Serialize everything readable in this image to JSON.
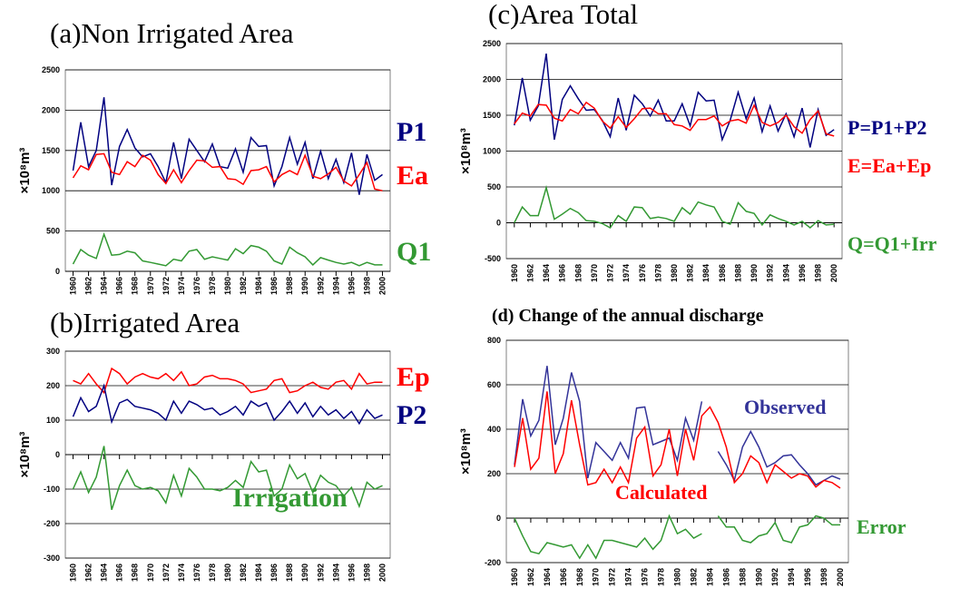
{
  "chart_data": [
    {
      "type": "line",
      "title": "(a)Non Irrigated Area",
      "y_label": "×10⁸m³",
      "x": [
        1960,
        1961,
        1962,
        1963,
        1964,
        1965,
        1966,
        1967,
        1968,
        1969,
        1970,
        1971,
        1972,
        1973,
        1974,
        1975,
        1976,
        1977,
        1978,
        1979,
        1980,
        1981,
        1982,
        1983,
        1984,
        1985,
        1986,
        1987,
        1988,
        1989,
        1990,
        1991,
        1992,
        1993,
        1994,
        1995,
        1996,
        1997,
        1998,
        1999,
        2000
      ],
      "xlim": [
        1959,
        2001
      ],
      "xticks": [
        1960,
        1962,
        1964,
        1966,
        1968,
        1970,
        1972,
        1974,
        1976,
        1978,
        1980,
        1982,
        1984,
        1986,
        1988,
        1990,
        1992,
        1994,
        1996,
        1998,
        2000
      ],
      "ylim": [
        0,
        2500
      ],
      "yticks": [
        0,
        500,
        1000,
        1500,
        2000,
        2500
      ],
      "grid": true,
      "series": [
        {
          "name": "P1",
          "color": "#000080",
          "values": [
            1250,
            1850,
            1300,
            1500,
            2160,
            1070,
            1550,
            1760,
            1530,
            1420,
            1460,
            1300,
            1100,
            1600,
            1150,
            1640,
            1500,
            1360,
            1580,
            1300,
            1280,
            1520,
            1230,
            1660,
            1550,
            1560,
            1060,
            1300,
            1660,
            1330,
            1600,
            1150,
            1490,
            1150,
            1390,
            1100,
            1470,
            950,
            1450,
            1130,
            1200
          ]
        },
        {
          "name": "Ea",
          "color": "#ff0000",
          "values": [
            1160,
            1310,
            1260,
            1450,
            1460,
            1230,
            1200,
            1360,
            1300,
            1440,
            1380,
            1200,
            1090,
            1260,
            1100,
            1250,
            1380,
            1370,
            1290,
            1300,
            1150,
            1140,
            1080,
            1250,
            1260,
            1300,
            1110,
            1200,
            1250,
            1200,
            1440,
            1180,
            1150,
            1210,
            1290,
            1120,
            1060,
            1200,
            1350,
            1020,
            1000
          ]
        },
        {
          "name": "Q1",
          "color": "#339933",
          "values": [
            90,
            270,
            200,
            160,
            460,
            200,
            210,
            250,
            230,
            130,
            110,
            90,
            70,
            150,
            130,
            250,
            270,
            150,
            180,
            160,
            140,
            280,
            220,
            320,
            300,
            250,
            130,
            90,
            300,
            230,
            180,
            80,
            170,
            140,
            110,
            90,
            110,
            70,
            110,
            80,
            80
          ]
        }
      ]
    },
    {
      "type": "line",
      "title": "(b)Irrigated Area",
      "y_label": "×10⁸m³",
      "x": [
        1960,
        1961,
        1962,
        1963,
        1964,
        1965,
        1966,
        1967,
        1968,
        1969,
        1970,
        1971,
        1972,
        1973,
        1974,
        1975,
        1976,
        1977,
        1978,
        1979,
        1980,
        1981,
        1982,
        1983,
        1984,
        1985,
        1986,
        1987,
        1988,
        1989,
        1990,
        1991,
        1992,
        1993,
        1994,
        1995,
        1996,
        1997,
        1998,
        1999,
        2000
      ],
      "xlim": [
        1959,
        2001
      ],
      "xticks": [
        1960,
        1962,
        1964,
        1966,
        1968,
        1970,
        1972,
        1974,
        1976,
        1978,
        1980,
        1982,
        1984,
        1986,
        1988,
        1990,
        1992,
        1994,
        1996,
        1998,
        2000
      ],
      "ylim": [
        -300,
        300
      ],
      "yticks": [
        -300,
        -200,
        -100,
        0,
        100,
        200,
        300
      ],
      "grid": true,
      "series": [
        {
          "name": "Ep",
          "color": "#ff0000",
          "values": [
            215,
            205,
            235,
            205,
            180,
            250,
            235,
            205,
            225,
            235,
            225,
            220,
            235,
            215,
            240,
            200,
            205,
            225,
            230,
            220,
            220,
            215,
            205,
            180,
            185,
            190,
            215,
            220,
            180,
            185,
            200,
            210,
            195,
            190,
            210,
            215,
            190,
            235,
            205,
            210,
            210
          ]
        },
        {
          "name": "P2",
          "color": "#000080",
          "values": [
            110,
            165,
            125,
            140,
            200,
            95,
            150,
            160,
            140,
            135,
            130,
            120,
            100,
            155,
            120,
            155,
            145,
            130,
            135,
            115,
            125,
            140,
            115,
            155,
            140,
            150,
            100,
            125,
            155,
            120,
            150,
            110,
            140,
            115,
            130,
            105,
            125,
            90,
            130,
            105,
            115
          ]
        },
        {
          "name": "Irrigation",
          "color": "#339933",
          "values": [
            -100,
            -50,
            -110,
            -65,
            25,
            -160,
            -90,
            -45,
            -90,
            -100,
            -95,
            -105,
            -140,
            -60,
            -120,
            -40,
            -65,
            -100,
            -100,
            -105,
            -95,
            -75,
            -95,
            -20,
            -50,
            -45,
            -120,
            -100,
            -30,
            -70,
            -55,
            -110,
            -60,
            -80,
            -90,
            -120,
            -95,
            -150,
            -80,
            -100,
            -90
          ]
        }
      ]
    },
    {
      "type": "line",
      "title": "(c)Area Total",
      "y_label": "×10⁸m³",
      "x": [
        1960,
        1961,
        1962,
        1963,
        1964,
        1965,
        1966,
        1967,
        1968,
        1969,
        1970,
        1971,
        1972,
        1973,
        1974,
        1975,
        1976,
        1977,
        1978,
        1979,
        1980,
        1981,
        1982,
        1983,
        1984,
        1985,
        1986,
        1987,
        1988,
        1989,
        1990,
        1991,
        1992,
        1993,
        1994,
        1995,
        1996,
        1997,
        1998,
        1999,
        2000
      ],
      "xlim": [
        1959,
        2001
      ],
      "xticks": [
        1960,
        1962,
        1964,
        1966,
        1968,
        1970,
        1972,
        1974,
        1976,
        1978,
        1980,
        1982,
        1984,
        1986,
        1988,
        1990,
        1992,
        1994,
        1996,
        1998,
        2000
      ],
      "ylim": [
        -500,
        2500
      ],
      "yticks": [
        -500,
        0,
        500,
        1000,
        1500,
        2000,
        2500
      ],
      "grid": true,
      "series": [
        {
          "name": "P=P1+P2",
          "color": "#000080",
          "values": [
            1360,
            2020,
            1430,
            1630,
            2360,
            1160,
            1720,
            1910,
            1730,
            1570,
            1580,
            1430,
            1200,
            1740,
            1290,
            1780,
            1660,
            1490,
            1710,
            1420,
            1420,
            1660,
            1350,
            1820,
            1700,
            1710,
            1160,
            1430,
            1820,
            1450,
            1740,
            1270,
            1630,
            1280,
            1520,
            1200,
            1600,
            1050,
            1580,
            1220,
            1300
          ]
        },
        {
          "name": "E=Ea+Ep",
          "color": "#ff0000",
          "values": [
            1380,
            1530,
            1490,
            1650,
            1640,
            1460,
            1420,
            1580,
            1520,
            1680,
            1600,
            1420,
            1320,
            1480,
            1330,
            1450,
            1590,
            1600,
            1520,
            1520,
            1370,
            1350,
            1290,
            1440,
            1440,
            1490,
            1350,
            1420,
            1440,
            1390,
            1640,
            1400,
            1350,
            1400,
            1500,
            1340,
            1250,
            1440,
            1560,
            1240,
            1210
          ]
        },
        {
          "name": "Q=Q1+Irr",
          "color": "#339933",
          "values": [
            0,
            220,
            100,
            100,
            490,
            50,
            120,
            200,
            140,
            30,
            20,
            -10,
            -70,
            100,
            20,
            220,
            210,
            60,
            80,
            60,
            20,
            210,
            120,
            290,
            250,
            220,
            20,
            -20,
            280,
            160,
            130,
            -30,
            110,
            60,
            20,
            -30,
            20,
            -70,
            30,
            -30,
            -20
          ]
        }
      ]
    },
    {
      "type": "line",
      "title": "(d) Change of the annual discharge",
      "y_label": "×10⁸m³",
      "x": [
        1960,
        1961,
        1962,
        1963,
        1964,
        1965,
        1966,
        1967,
        1968,
        1969,
        1970,
        1971,
        1972,
        1973,
        1974,
        1975,
        1976,
        1977,
        1978,
        1979,
        1980,
        1981,
        1982,
        1983,
        1984,
        1985,
        1986,
        1987,
        1988,
        1989,
        1990,
        1991,
        1992,
        1993,
        1994,
        1995,
        1996,
        1997,
        1998,
        1999,
        2000
      ],
      "xlim": [
        1959,
        2001
      ],
      "xticks": [
        1960,
        1962,
        1964,
        1966,
        1968,
        1970,
        1972,
        1974,
        1976,
        1978,
        1980,
        1982,
        1984,
        1986,
        1988,
        1990,
        1992,
        1994,
        1996,
        1998,
        2000
      ],
      "ylim": [
        -200,
        800
      ],
      "yticks": [
        -200,
        0,
        200,
        400,
        600,
        800
      ],
      "grid": true,
      "series": [
        {
          "name": "Observed",
          "color": "#333399",
          "values": [
            240,
            535,
            370,
            440,
            685,
            330,
            450,
            655,
            525,
            180,
            340,
            300,
            260,
            340,
            270,
            495,
            500,
            330,
            345,
            360,
            260,
            450,
            350,
            525,
            null,
            300,
            240,
            170,
            320,
            390,
            320,
            230,
            250,
            280,
            285,
            240,
            200,
            150,
            170,
            190,
            175
          ]
        },
        {
          "name": "Calculated",
          "color": "#ff0000",
          "values": [
            230,
            450,
            220,
            270,
            570,
            200,
            290,
            530,
            330,
            150,
            160,
            220,
            160,
            230,
            160,
            360,
            410,
            190,
            240,
            400,
            190,
            400,
            260,
            460,
            500,
            430,
            320,
            160,
            200,
            280,
            250,
            160,
            240,
            210,
            180,
            200,
            190,
            140,
            170,
            160,
            135
          ]
        },
        {
          "name": "Error",
          "color": "#339933",
          "values": [
            0,
            -80,
            -150,
            -160,
            -110,
            -120,
            -130,
            -120,
            -180,
            -120,
            -180,
            -100,
            -100,
            -110,
            -120,
            -130,
            -90,
            -140,
            -100,
            10,
            -70,
            -50,
            -90,
            -70,
            null,
            10,
            -40,
            -40,
            -100,
            -110,
            -80,
            -70,
            -20,
            -100,
            -110,
            -40,
            -30,
            10,
            0,
            -30,
            -30
          ]
        }
      ]
    }
  ]
}
